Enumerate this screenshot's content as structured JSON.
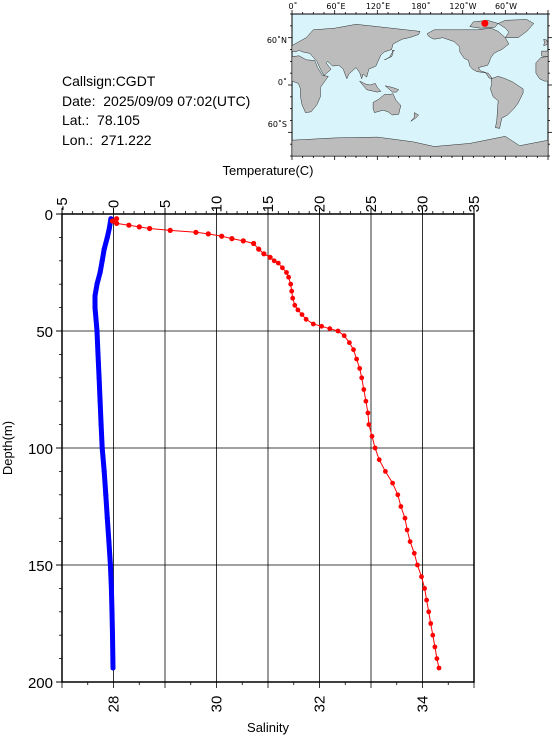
{
  "station": {
    "callsign_line": "Callsign:CGDT",
    "date_label": "Date:",
    "date_value": "2025/09/09 07:02(UTC)",
    "lat_label": "Lat.:",
    "lat_value": "78.105",
    "lon_label": "Lon.:",
    "lon_value": "271.222"
  },
  "map": {
    "top_labels": [
      "0˚",
      "60˚E",
      "120˚E",
      "180˚",
      "120˚W",
      "60˚W"
    ],
    "left_labels": [
      "60˚N",
      "0˚",
      "60˚S"
    ],
    "ocean_color": "#d9f4fa",
    "land_color": "#bcbcbc",
    "marker_color": "#ff0000",
    "marker_lon": 271.222,
    "marker_lat": 78.105
  },
  "chart_data": {
    "type": "line",
    "top_axis_title": "Temperature(C)",
    "left_axis_title": "Depth(m)",
    "bottom_axis_title": "Salinity",
    "temperature_range": [
      -5,
      35
    ],
    "temperature_ticks": [
      "-5",
      "0",
      "5",
      "10",
      "15",
      "20",
      "25",
      "30",
      "35"
    ],
    "salinity_range": [
      27,
      35
    ],
    "salinity_ticks": [
      "28",
      "30",
      "32",
      "34"
    ],
    "depth_range": [
      0,
      200
    ],
    "depth_ticks": [
      "0",
      "50",
      "100",
      "150",
      "200"
    ],
    "grid": true,
    "series": [
      {
        "key": "temperature",
        "axis": "top",
        "color": "#ff0000",
        "points": [
          [
            0.3,
            2.0
          ],
          [
            -0.1,
            3.0
          ],
          [
            0.3,
            4.0
          ],
          [
            1.5,
            4.8
          ],
          [
            2.5,
            5.5
          ],
          [
            3.5,
            6.2
          ],
          [
            5.5,
            7.0
          ],
          [
            8.0,
            7.8
          ],
          [
            9.2,
            8.5
          ],
          [
            10.5,
            9.5
          ],
          [
            11.5,
            10.5
          ],
          [
            12.6,
            11.5
          ],
          [
            13.6,
            12.6
          ],
          [
            14.1,
            15.0
          ],
          [
            14.6,
            17.0
          ],
          [
            15.2,
            18.5
          ],
          [
            15.6,
            20.0
          ],
          [
            16.0,
            21.0
          ],
          [
            16.4,
            23.0
          ],
          [
            16.8,
            25.0
          ],
          [
            17.0,
            27.0
          ],
          [
            17.2,
            30.0
          ],
          [
            17.3,
            33.0
          ],
          [
            17.4,
            36.0
          ],
          [
            17.6,
            39.0
          ],
          [
            17.9,
            41.0
          ],
          [
            18.3,
            43.0
          ],
          [
            18.7,
            45.0
          ],
          [
            19.4,
            47.0
          ],
          [
            20.2,
            48.0
          ],
          [
            21.0,
            49.0
          ],
          [
            21.8,
            50.0
          ],
          [
            22.4,
            52.0
          ],
          [
            22.9,
            55.0
          ],
          [
            23.3,
            58.0
          ],
          [
            23.6,
            62.0
          ],
          [
            23.9,
            66.0
          ],
          [
            24.1,
            70.0
          ],
          [
            24.3,
            75.0
          ],
          [
            24.5,
            80.0
          ],
          [
            24.7,
            85.0
          ],
          [
            24.8,
            90.0
          ],
          [
            25.1,
            95.0
          ],
          [
            25.4,
            100.0
          ],
          [
            25.8,
            105.0
          ],
          [
            26.4,
            110.0
          ],
          [
            27.1,
            115.0
          ],
          [
            27.6,
            120.0
          ],
          [
            27.9,
            125.0
          ],
          [
            28.3,
            130.0
          ],
          [
            28.5,
            135.0
          ],
          [
            28.8,
            140.0
          ],
          [
            29.2,
            145.0
          ],
          [
            29.5,
            150.0
          ],
          [
            29.9,
            155.0
          ],
          [
            30.2,
            160.0
          ],
          [
            30.4,
            165.0
          ],
          [
            30.6,
            170.0
          ],
          [
            30.8,
            175.0
          ],
          [
            31.0,
            180.0
          ],
          [
            31.2,
            185.0
          ],
          [
            31.4,
            190.0
          ],
          [
            31.6,
            194.0
          ]
        ]
      },
      {
        "key": "salinity",
        "axis": "bottom",
        "color": "#0000ff",
        "points": [
          [
            27.95,
            2.0
          ],
          [
            27.92,
            6.0
          ],
          [
            27.88,
            10.0
          ],
          [
            27.82,
            15.0
          ],
          [
            27.78,
            20.0
          ],
          [
            27.74,
            25.0
          ],
          [
            27.68,
            30.0
          ],
          [
            27.64,
            35.0
          ],
          [
            27.64,
            40.0
          ],
          [
            27.66,
            45.0
          ],
          [
            27.68,
            50.0
          ],
          [
            27.7,
            60.0
          ],
          [
            27.72,
            70.0
          ],
          [
            27.74,
            80.0
          ],
          [
            27.76,
            90.0
          ],
          [
            27.78,
            100.0
          ],
          [
            27.82,
            110.0
          ],
          [
            27.85,
            120.0
          ],
          [
            27.88,
            130.0
          ],
          [
            27.91,
            140.0
          ],
          [
            27.94,
            150.0
          ],
          [
            27.96,
            160.0
          ],
          [
            27.97,
            170.0
          ],
          [
            27.98,
            180.0
          ],
          [
            27.99,
            194.0
          ]
        ]
      }
    ]
  }
}
